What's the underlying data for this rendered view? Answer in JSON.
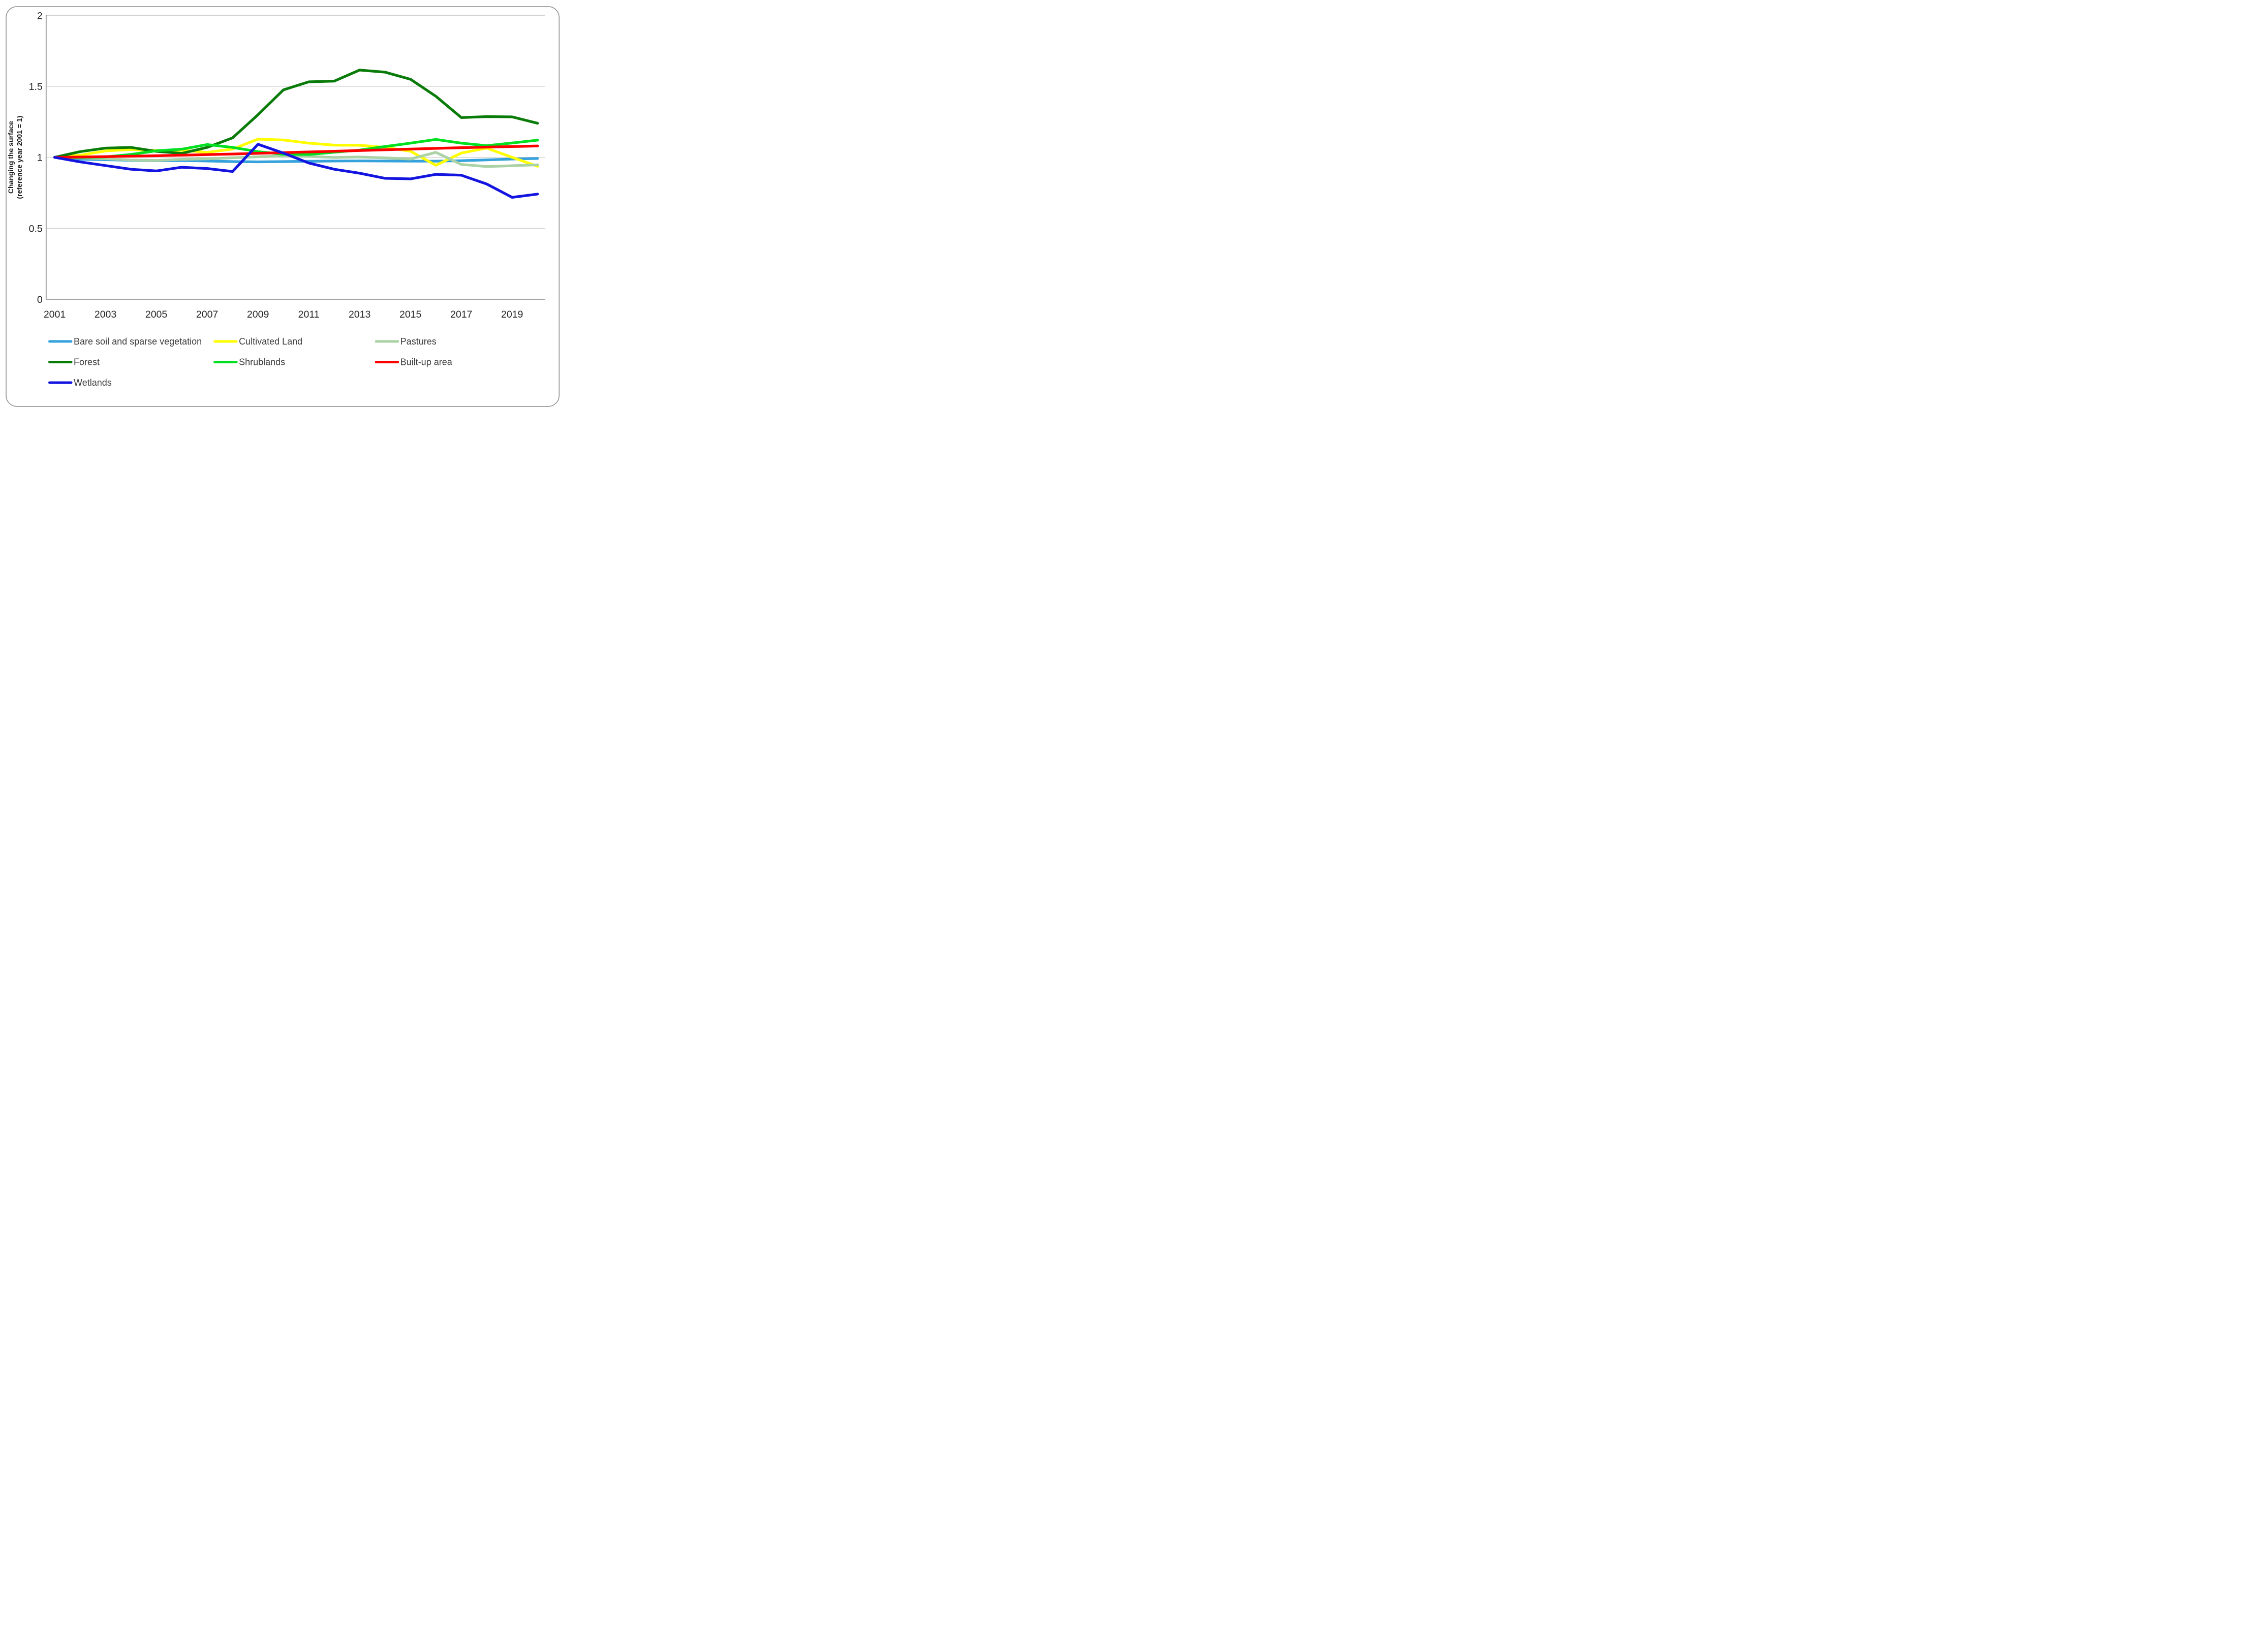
{
  "figure": {
    "y_axis_title_line1": "Changing the surface",
    "y_axis_title_line2": "(reference year 2001 = 1)"
  },
  "chart_data": {
    "type": "line",
    "x": [
      2001,
      2002,
      2003,
      2004,
      2005,
      2006,
      2007,
      2008,
      2009,
      2010,
      2011,
      2012,
      2013,
      2014,
      2015,
      2016,
      2017,
      2018,
      2019,
      2020
    ],
    "x_tick_labels": [
      "2001",
      "2003",
      "2005",
      "2007",
      "2009",
      "2011",
      "2013",
      "2015",
      "2017",
      "2019"
    ],
    "y_ticks": [
      0,
      0.5,
      1,
      1.5,
      2
    ],
    "y_tick_labels": [
      "0",
      "0.5",
      "1",
      "1.5",
      "2"
    ],
    "ylim": [
      0,
      2
    ],
    "grid": true,
    "legend_position": "bottom",
    "series": [
      {
        "name": "Bare soil and sparse vegetation",
        "color": "#35A2DC",
        "values": [
          1.0,
          0.987,
          0.983,
          0.979,
          0.976,
          0.977,
          0.974,
          0.97,
          0.968,
          0.97,
          0.972,
          0.974,
          0.975,
          0.974,
          0.973,
          0.973,
          0.976,
          0.982,
          0.988,
          0.992
        ]
      },
      {
        "name": "Cultivated Land",
        "color": "#FFFF00",
        "values": [
          1.0,
          1.015,
          1.045,
          1.055,
          1.048,
          1.05,
          1.035,
          1.058,
          1.128,
          1.122,
          1.1,
          1.086,
          1.085,
          1.07,
          1.043,
          0.944,
          1.03,
          1.065,
          1.0,
          0.937
        ]
      },
      {
        "name": "Pastures",
        "color": "#ABD2A5",
        "values": [
          1.0,
          0.996,
          0.99,
          0.981,
          0.978,
          0.986,
          0.989,
          0.997,
          1.004,
          1.01,
          1.006,
          0.999,
          1.002,
          0.996,
          0.988,
          1.035,
          0.95,
          0.935,
          0.941,
          0.947
        ]
      },
      {
        "name": "Forest",
        "color": "#097B09",
        "values": [
          1.0,
          1.04,
          1.065,
          1.07,
          1.042,
          1.028,
          1.07,
          1.137,
          1.3,
          1.475,
          1.532,
          1.537,
          1.615,
          1.6,
          1.55,
          1.43,
          1.28,
          1.287,
          1.285,
          1.24
        ]
      },
      {
        "name": "Shrublands",
        "color": "#00DF20",
        "values": [
          1.0,
          0.999,
          1.003,
          1.02,
          1.046,
          1.057,
          1.09,
          1.07,
          1.04,
          1.022,
          1.02,
          1.036,
          1.051,
          1.076,
          1.1,
          1.126,
          1.1,
          1.082,
          1.101,
          1.121
        ]
      },
      {
        "name": "Built-up area",
        "color": "#FF0000",
        "values": [
          1.0,
          1.002,
          1.005,
          1.008,
          1.011,
          1.015,
          1.019,
          1.023,
          1.028,
          1.033,
          1.038,
          1.043,
          1.048,
          1.053,
          1.058,
          1.063,
          1.068,
          1.072,
          1.076,
          1.08
        ]
      },
      {
        "name": "Wetlands",
        "color": "#1414E0",
        "values": [
          1.0,
          0.968,
          0.942,
          0.916,
          0.904,
          0.93,
          0.921,
          0.9,
          1.092,
          1.03,
          0.96,
          0.916,
          0.888,
          0.852,
          0.848,
          0.88,
          0.874,
          0.812,
          0.718,
          0.741
        ]
      }
    ]
  },
  "legend": {
    "items": [
      {
        "label": "Bare soil and sparse vegetation",
        "series_index": 0,
        "row": 0,
        "col": 0
      },
      {
        "label": "Cultivated Land",
        "series_index": 1,
        "row": 0,
        "col": 1
      },
      {
        "label": "Pastures",
        "series_index": 2,
        "row": 0,
        "col": 2
      },
      {
        "label": "Forest",
        "series_index": 3,
        "row": 1,
        "col": 0
      },
      {
        "label": "Shrublands",
        "series_index": 4,
        "row": 1,
        "col": 1
      },
      {
        "label": "Built-up area",
        "series_index": 5,
        "row": 1,
        "col": 2
      },
      {
        "label": "Wetlands",
        "series_index": 6,
        "row": 2,
        "col": 0
      }
    ]
  }
}
